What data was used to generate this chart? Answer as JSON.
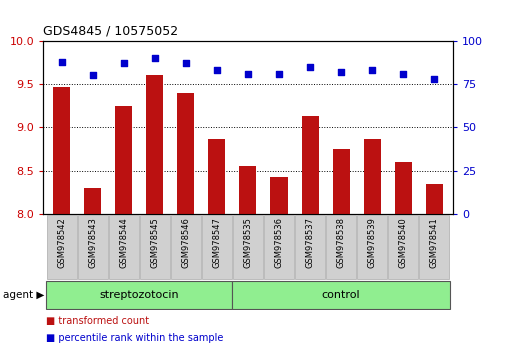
{
  "title": "GDS4845 / 10575052",
  "samples": [
    "GSM978542",
    "GSM978543",
    "GSM978544",
    "GSM978545",
    "GSM978546",
    "GSM978547",
    "GSM978535",
    "GSM978536",
    "GSM978537",
    "GSM978538",
    "GSM978539",
    "GSM978540",
    "GSM978541"
  ],
  "bar_values": [
    9.47,
    8.3,
    9.25,
    9.6,
    9.4,
    8.87,
    8.55,
    8.43,
    9.13,
    8.75,
    8.87,
    8.6,
    8.35
  ],
  "scatter_values": [
    88,
    80,
    87,
    90,
    87,
    83,
    81,
    81,
    85,
    82,
    83,
    81,
    78
  ],
  "bar_color": "#bb1111",
  "scatter_color": "#0000cc",
  "ylim_left": [
    8.0,
    10.0
  ],
  "ylim_right": [
    0,
    100
  ],
  "yticks_left": [
    8.0,
    8.5,
    9.0,
    9.5,
    10.0
  ],
  "yticks_right": [
    0,
    25,
    50,
    75,
    100
  ],
  "group1_label": "streptozotocin",
  "group2_label": "control",
  "group1_count": 6,
  "group2_count": 7,
  "group_color": "#90ee90",
  "xlabel_color": "#cc0000",
  "ylabel_right_color": "#0000cc",
  "agent_label": "agent",
  "legend1": "transformed count",
  "legend2": "percentile rank within the sample",
  "bar_width": 0.55,
  "background_color": "#ffffff",
  "xticklabel_bg": "#d0d0d0"
}
